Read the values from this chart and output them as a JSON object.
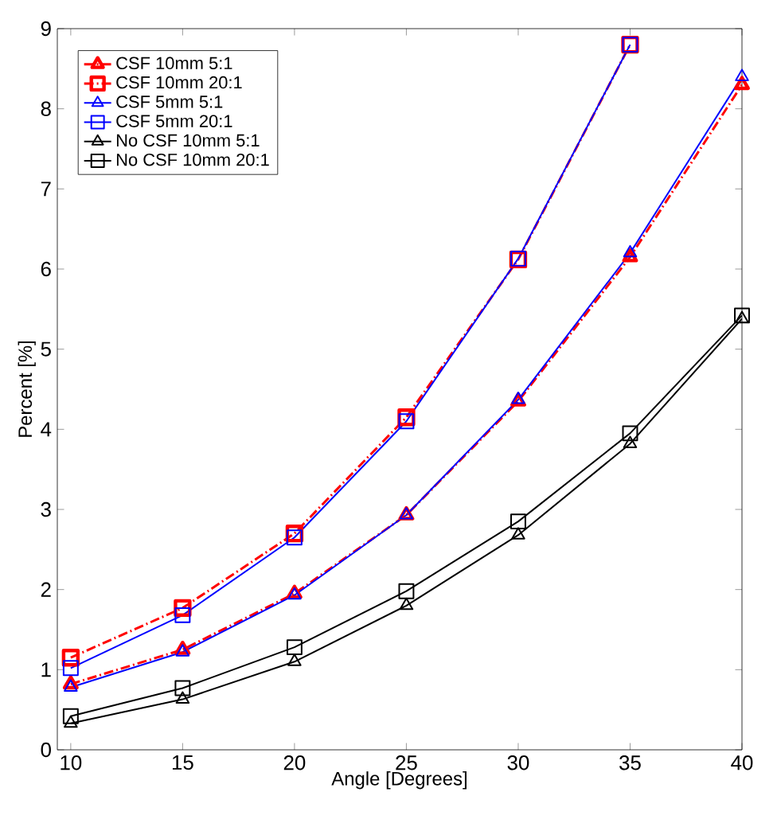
{
  "chart_data": {
    "type": "line",
    "xlabel": "Angle [Degrees]",
    "ylabel": "Percent [%]",
    "x": [
      10,
      15,
      20,
      25,
      30,
      35,
      40
    ],
    "xlim": [
      9.4,
      40
    ],
    "xticks": [
      10,
      15,
      20,
      25,
      30,
      35,
      40
    ],
    "ylim": [
      0,
      9
    ],
    "yticks": [
      0,
      1,
      2,
      3,
      4,
      5,
      6,
      7,
      8,
      9
    ],
    "legend": "top left",
    "grid": false,
    "series": [
      {
        "name": "CSF 10mm 5:1",
        "color": "#ff0000",
        "marker": "triangle",
        "line_style": "dashed",
        "values": [
          0.82,
          1.25,
          1.95,
          2.93,
          4.35,
          6.15,
          8.3
        ]
      },
      {
        "name": "CSF 10mm 20:1",
        "color": "#ff0000",
        "marker": "square",
        "line_style": "dashed",
        "values": [
          1.15,
          1.77,
          2.7,
          4.15,
          6.12,
          8.8,
          null
        ]
      },
      {
        "name": "CSF  5mm 5:1",
        "color": "#0000ff",
        "marker": "triangle",
        "line_style": "solid",
        "values": [
          0.78,
          1.22,
          1.93,
          2.93,
          4.37,
          6.2,
          8.4
        ]
      },
      {
        "name": "CSF  5mm 20:1",
        "color": "#0000ff",
        "marker": "square",
        "line_style": "solid",
        "values": [
          1.02,
          1.68,
          2.65,
          4.1,
          6.13,
          8.8,
          null
        ]
      },
      {
        "name": "No CSF 10mm 5:1",
        "color": "#000000",
        "marker": "triangle",
        "line_style": "solid",
        "values": [
          0.33,
          0.63,
          1.1,
          1.8,
          2.68,
          3.82,
          5.38
        ]
      },
      {
        "name": "No CSF 10mm 20:1",
        "color": "#000000",
        "marker": "square",
        "line_style": "solid",
        "values": [
          0.42,
          0.77,
          1.28,
          1.98,
          2.85,
          3.95,
          5.42
        ]
      }
    ]
  }
}
